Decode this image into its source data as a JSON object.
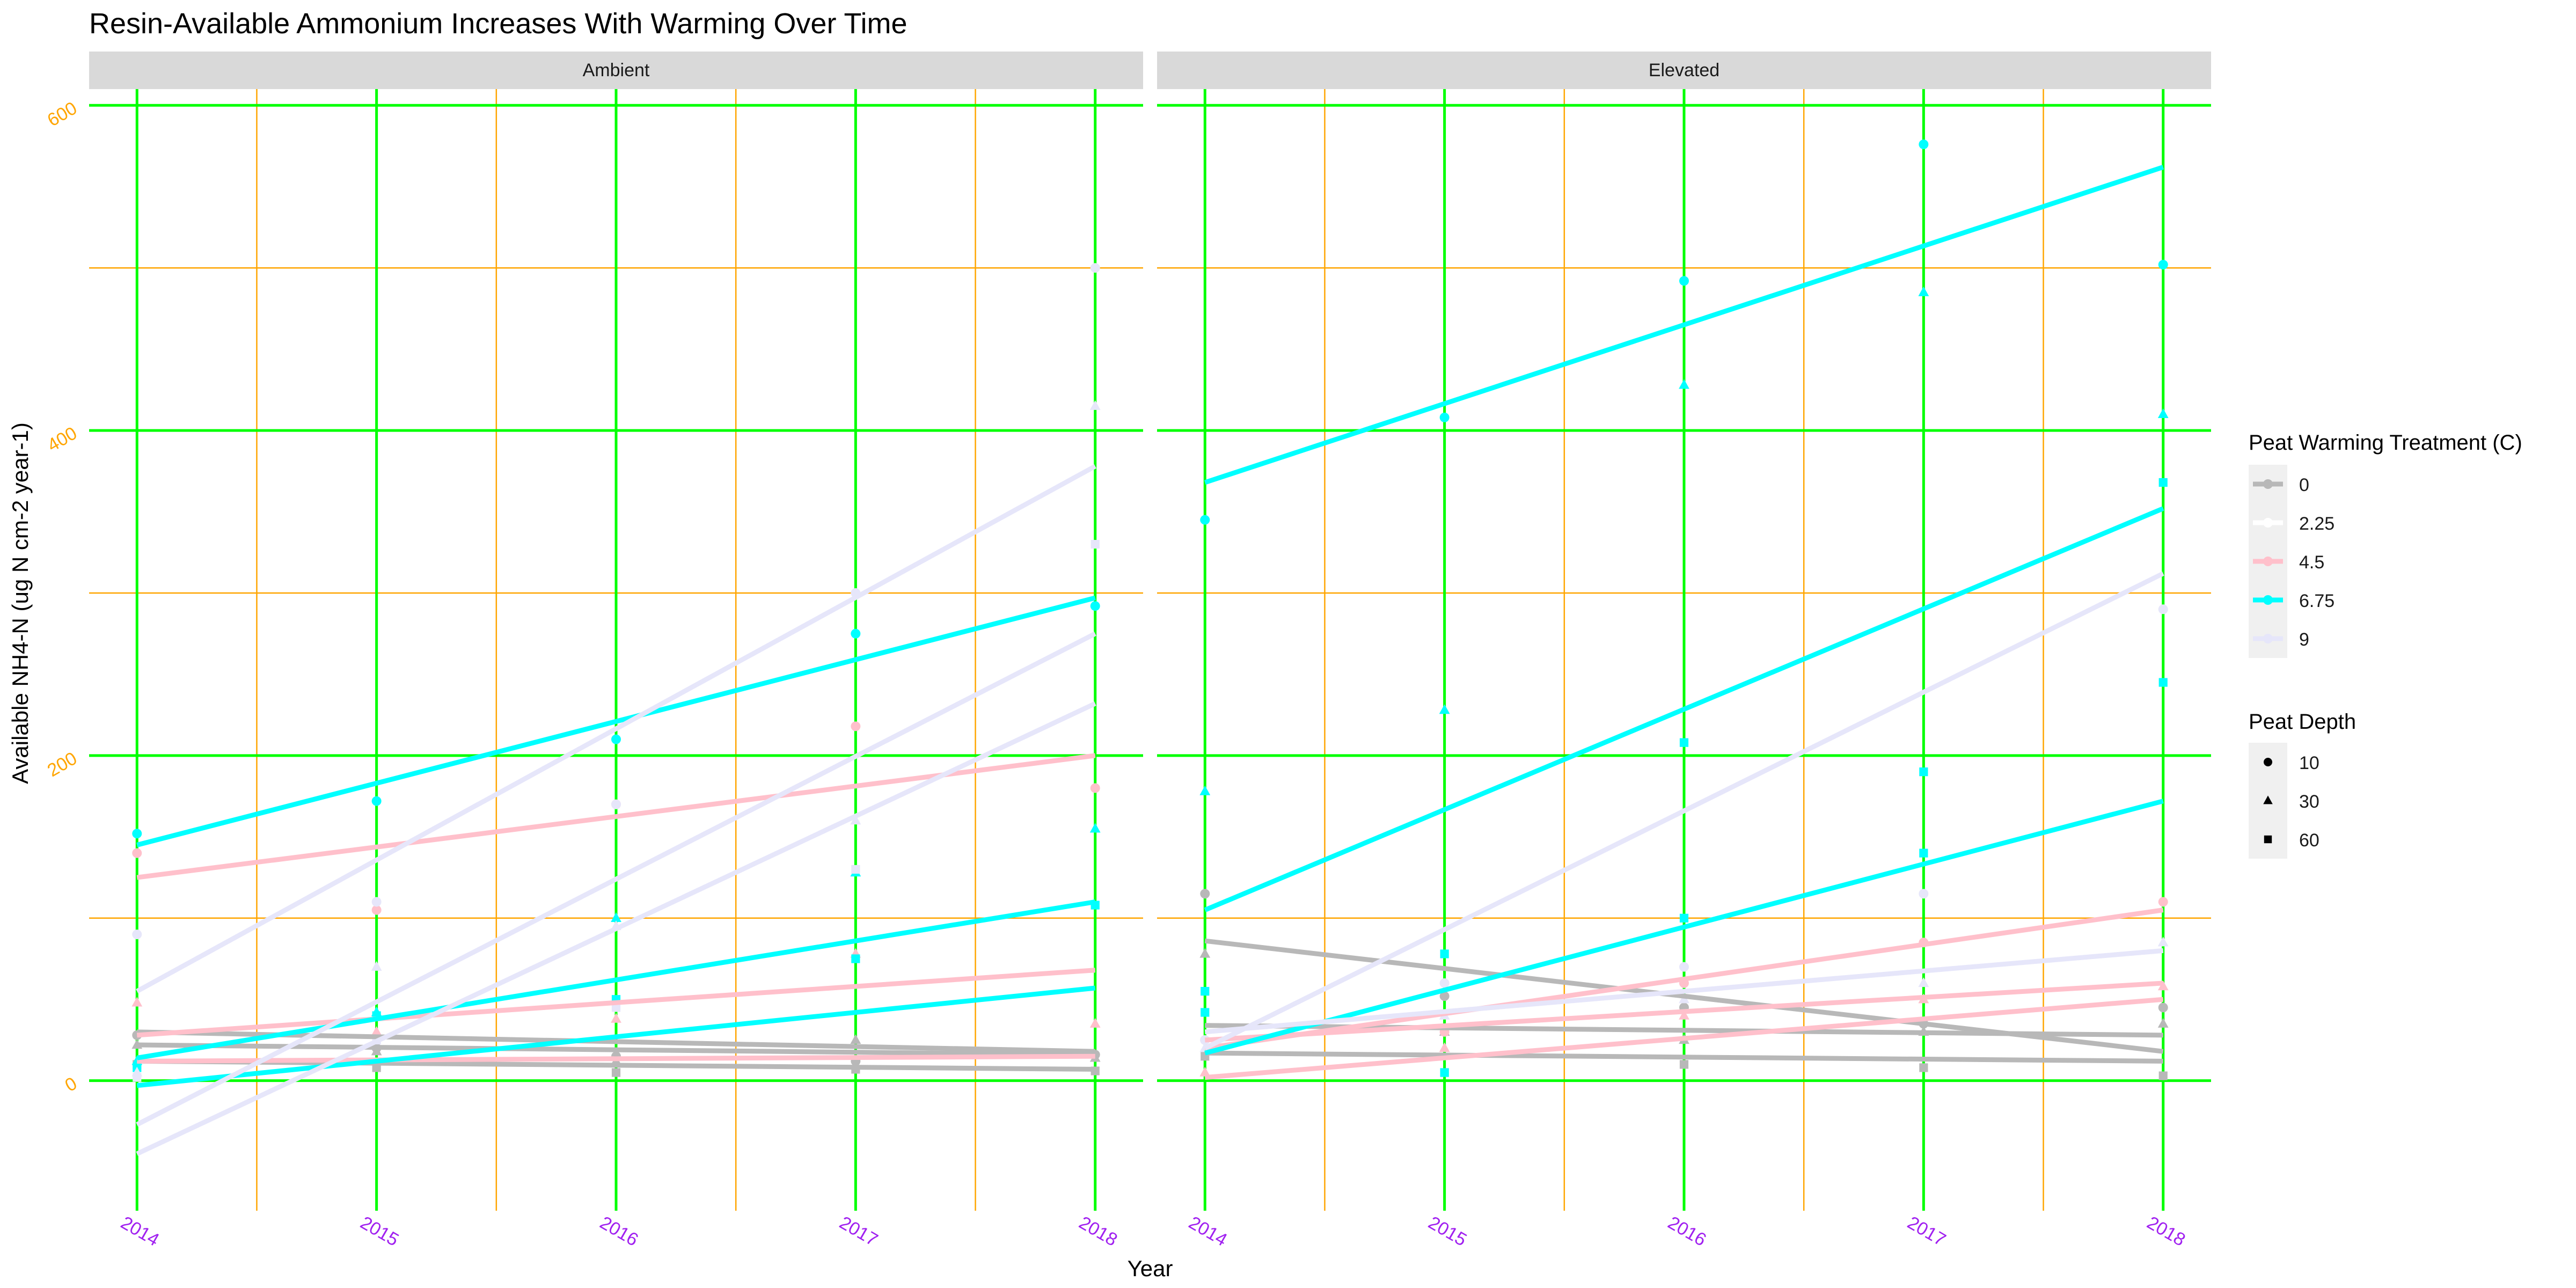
{
  "chart_data": {
    "type": "line",
    "title": "Resin-Available Ammonium Increases With Warming Over Time",
    "xlabel": "Year",
    "ylabel": "Available NH4-N (ug N cm-2 year-1)",
    "x_ticks": [
      2014,
      2015,
      2016,
      2017,
      2018
    ],
    "y_ticks": [
      0,
      200,
      400,
      600
    ],
    "xlim": [
      2013.8,
      2018.2
    ],
    "ylim": [
      -80,
      610
    ],
    "grid": true,
    "legend_position": "right",
    "facets": [
      {
        "label": "Ambient",
        "lines": [
          {
            "treatment": "0",
            "depth": "10",
            "x": [
              2014,
              2018
            ],
            "y": [
              30,
              18
            ]
          },
          {
            "treatment": "0",
            "depth": "30",
            "x": [
              2014,
              2018
            ],
            "y": [
              22,
              16
            ]
          },
          {
            "treatment": "0",
            "depth": "60",
            "x": [
              2014,
              2018
            ],
            "y": [
              12,
              7
            ]
          },
          {
            "treatment": "4.5",
            "depth": "10",
            "x": [
              2014,
              2018
            ],
            "y": [
              125,
              200
            ]
          },
          {
            "treatment": "4.5",
            "depth": "30",
            "x": [
              2014,
              2018
            ],
            "y": [
              28,
              68
            ]
          },
          {
            "treatment": "4.5",
            "depth": "60",
            "x": [
              2014,
              2018
            ],
            "y": [
              12,
              15
            ]
          },
          {
            "treatment": "6.75",
            "depth": "10",
            "x": [
              2014,
              2018
            ],
            "y": [
              145,
              297
            ]
          },
          {
            "treatment": "6.75",
            "depth": "30",
            "x": [
              2014,
              2018
            ],
            "y": [
              14,
              110
            ]
          },
          {
            "treatment": "6.75",
            "depth": "60",
            "x": [
              2014,
              2018
            ],
            "y": [
              -3,
              57
            ]
          },
          {
            "treatment": "9",
            "depth": "10",
            "x": [
              2014,
              2018
            ],
            "y": [
              55,
              378
            ]
          },
          {
            "treatment": "9",
            "depth": "30",
            "x": [
              2014,
              2018
            ],
            "y": [
              -27,
              275
            ]
          },
          {
            "treatment": "9",
            "depth": "60",
            "x": [
              2014,
              2018
            ],
            "y": [
              -45,
              232
            ]
          }
        ],
        "points": [
          {
            "treatment": "0",
            "depth": "10",
            "x": [
              2014,
              2015,
              2016,
              2017,
              2018
            ],
            "y": [
              28,
              20,
              15,
              12,
              16
            ]
          },
          {
            "treatment": "0",
            "depth": "30",
            "x": [
              2014,
              2015,
              2016,
              2017,
              2018
            ],
            "y": [
              22,
              18,
              12,
              25,
              14
            ]
          },
          {
            "treatment": "0",
            "depth": "60",
            "x": [
              2014,
              2015,
              2016,
              2017,
              2018
            ],
            "y": [
              10,
              8,
              5,
              7,
              6
            ]
          },
          {
            "treatment": "4.5",
            "depth": "10",
            "x": [
              2014,
              2015,
              2016,
              2017,
              2018
            ],
            "y": [
              140,
              105,
              170,
              218,
              180
            ]
          },
          {
            "treatment": "4.5",
            "depth": "30",
            "x": [
              2014,
              2015,
              2016,
              2017,
              2018
            ],
            "y": [
              48,
              30,
              38,
              78,
              35
            ]
          },
          {
            "treatment": "6.75",
            "depth": "10",
            "x": [
              2014,
              2015,
              2016,
              2017,
              2018
            ],
            "y": [
              152,
              172,
              210,
              275,
              292
            ]
          },
          {
            "treatment": "6.75",
            "depth": "30",
            "x": [
              2014,
              2015,
              2016,
              2017,
              2018
            ],
            "y": [
              12,
              42,
              100,
              128,
              155
            ]
          },
          {
            "treatment": "6.75",
            "depth": "60",
            "x": [
              2014,
              2015,
              2016,
              2017,
              2018
            ],
            "y": [
              8,
              40,
              50,
              75,
              108
            ]
          },
          {
            "treatment": "9",
            "depth": "10",
            "x": [
              2014,
              2015,
              2016,
              2017,
              2018
            ],
            "y": [
              90,
              110,
              170,
              300,
              500
            ]
          },
          {
            "treatment": "9",
            "depth": "30",
            "x": [
              2014,
              2015,
              2016,
              2017,
              2018
            ],
            "y": [
              5,
              70,
              95,
              160,
              415
            ]
          },
          {
            "treatment": "9",
            "depth": "60",
            "x": [
              2014,
              2015,
              2016,
              2017,
              2018
            ],
            "y": [
              2,
              25,
              45,
              130,
              330
            ]
          }
        ]
      },
      {
        "label": "Elevated",
        "lines": [
          {
            "treatment": "0",
            "depth": "10",
            "x": [
              2014,
              2018
            ],
            "y": [
              86,
              18
            ]
          },
          {
            "treatment": "0",
            "depth": "30",
            "x": [
              2014,
              2018
            ],
            "y": [
              34,
              28
            ]
          },
          {
            "treatment": "0",
            "depth": "60",
            "x": [
              2014,
              2018
            ],
            "y": [
              17,
              12
            ]
          },
          {
            "treatment": "4.5",
            "depth": "10",
            "x": [
              2014,
              2018
            ],
            "y": [
              20,
              105
            ]
          },
          {
            "treatment": "4.5",
            "depth": "30",
            "x": [
              2014,
              2018
            ],
            "y": [
              25,
              60
            ]
          },
          {
            "treatment": "4.5",
            "depth": "60",
            "x": [
              2014,
              2018
            ],
            "y": [
              2,
              50
            ]
          },
          {
            "treatment": "6.75",
            "depth": "10",
            "x": [
              2014,
              2018
            ],
            "y": [
              368,
              562
            ]
          },
          {
            "treatment": "6.75",
            "depth": "30",
            "x": [
              2014,
              2018
            ],
            "y": [
              105,
              352
            ]
          },
          {
            "treatment": "6.75",
            "depth": "60",
            "x": [
              2014,
              2018
            ],
            "y": [
              17,
              172
            ]
          },
          {
            "treatment": "9",
            "depth": "10",
            "x": [
              2014,
              2018
            ],
            "y": [
              20,
              312
            ]
          },
          {
            "treatment": "9",
            "depth": "30",
            "x": [
              2014,
              2018
            ],
            "y": [
              30,
              80
            ]
          }
        ],
        "points": [
          {
            "treatment": "0",
            "depth": "10",
            "x": [
              2014,
              2015,
              2016,
              2017,
              2018
            ],
            "y": [
              115,
              52,
              45,
              35,
              45
            ]
          },
          {
            "treatment": "0",
            "depth": "30",
            "x": [
              2014,
              2015,
              2016,
              2017,
              2018
            ],
            "y": [
              78,
              30,
              25,
              30,
              35
            ]
          },
          {
            "treatment": "0",
            "depth": "60",
            "x": [
              2014,
              2015,
              2016,
              2017,
              2018
            ],
            "y": [
              15,
              5,
              10,
              8,
              3
            ]
          },
          {
            "treatment": "4.5",
            "depth": "10",
            "x": [
              2014,
              2015,
              2016,
              2017,
              2018
            ],
            "y": [
              25,
              30,
              60,
              85,
              110
            ]
          },
          {
            "treatment": "4.5",
            "depth": "30",
            "x": [
              2014,
              2015,
              2016,
              2017,
              2018
            ],
            "y": [
              5,
              20,
              40,
              50,
              58
            ]
          },
          {
            "treatment": "6.75",
            "depth": "10",
            "x": [
              2014,
              2015,
              2016,
              2017,
              2018
            ],
            "y": [
              345,
              408,
              492,
              576,
              502
            ]
          },
          {
            "treatment": "6.75",
            "depth": "30",
            "x": [
              2014,
              2015,
              2016,
              2017,
              2018
            ],
            "y": [
              178,
              228,
              428,
              485,
              410
            ]
          },
          {
            "treatment": "6.75",
            "depth": "60",
            "x": [
              2014,
              2015,
              2016,
              2017,
              2018
            ],
            "y": [
              55,
              78,
              208,
              190,
              368
            ]
          },
          {
            "treatment": "6.75",
            "depth": "60",
            "x": [
              2014,
              2015,
              2016,
              2017,
              2018
            ],
            "y": [
              42,
              5,
              100,
              140,
              245
            ]
          },
          {
            "treatment": "9",
            "depth": "10",
            "x": [
              2014,
              2015,
              2016,
              2017,
              2018
            ],
            "y": [
              25,
              60,
              70,
              115,
              290
            ]
          },
          {
            "treatment": "9",
            "depth": "30",
            "x": [
              2014,
              2015,
              2016,
              2017,
              2018
            ],
            "y": [
              20,
              40,
              50,
              60,
              85
            ]
          }
        ]
      }
    ],
    "legend": {
      "color_title": "Peat Warming Treatment (C)",
      "color_items": [
        {
          "label": "0",
          "color": "#b8b8b8"
        },
        {
          "label": "2.25",
          "color": "#ffffff"
        },
        {
          "label": "4.5",
          "color": "#ffc0cb"
        },
        {
          "label": "6.75",
          "color": "#00ffff"
        },
        {
          "label": "9",
          "color": "#e6e6fa"
        }
      ],
      "shape_title": "Peat Depth",
      "shape_items": [
        {
          "label": "10",
          "shape": "circle"
        },
        {
          "label": "30",
          "shape": "triangle"
        },
        {
          "label": "60",
          "shape": "square"
        }
      ]
    },
    "colors": {
      "major_grid": "#00ff00",
      "minor_grid": "#ffa500",
      "y_tick_text": "#ffa500",
      "x_tick_text": "#a020f0",
      "strip_fill": "#d9d9d9"
    }
  }
}
